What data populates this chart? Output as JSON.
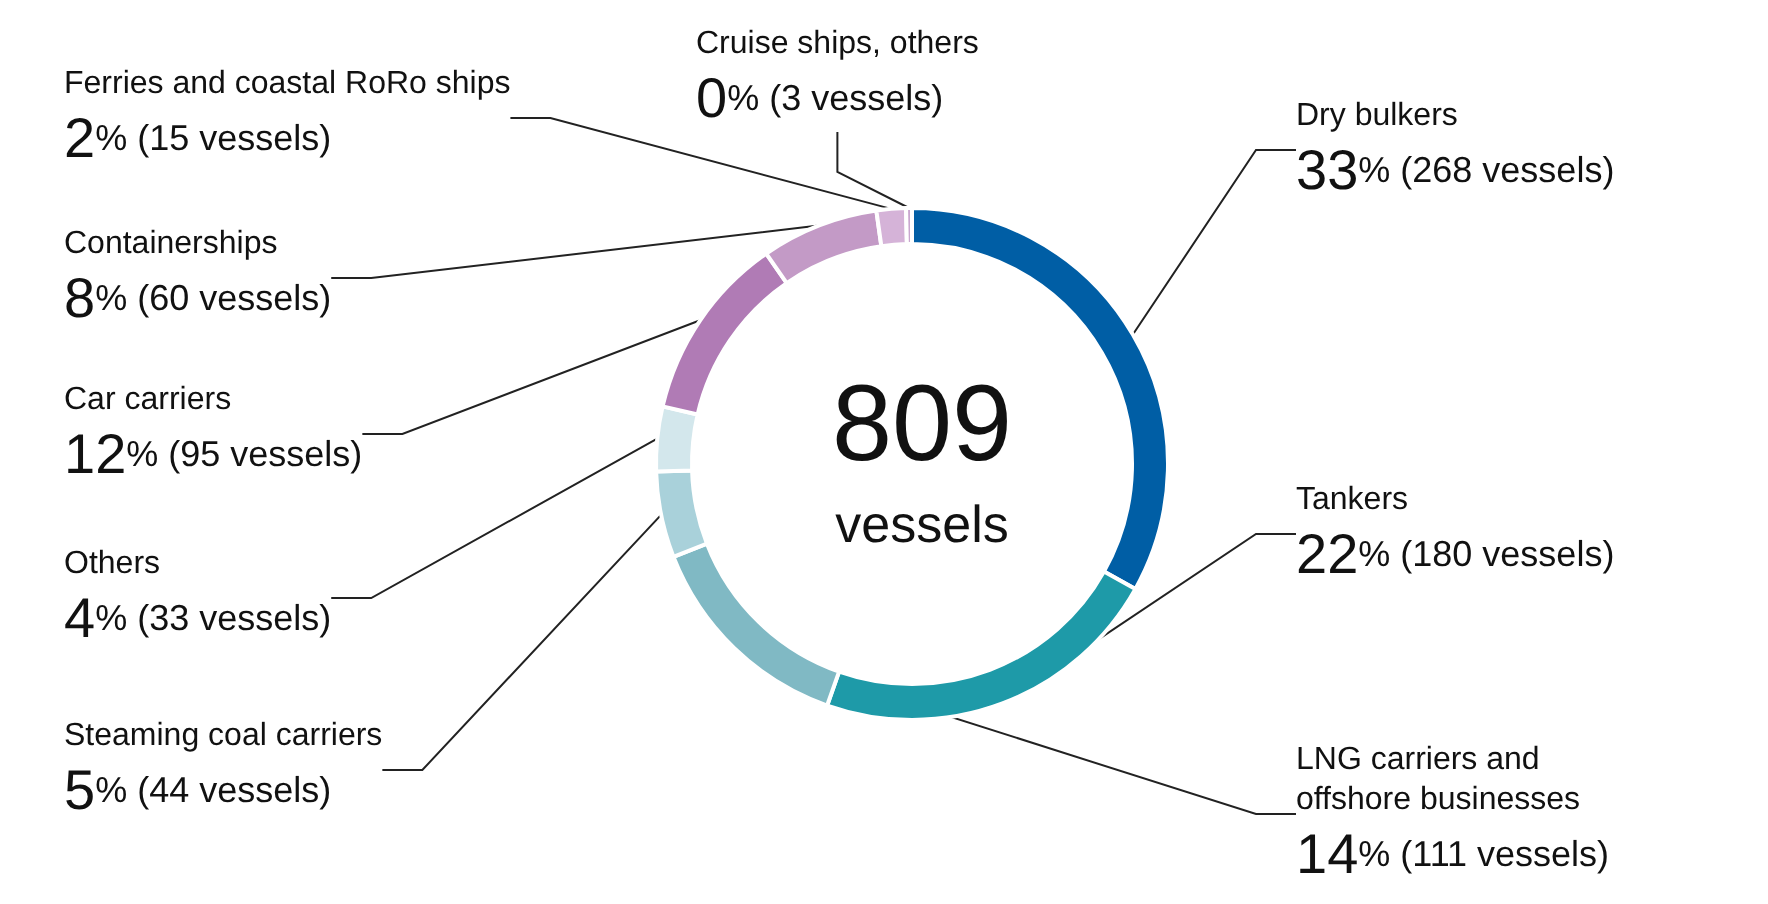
{
  "chart_data": {
    "type": "donut",
    "title": "809",
    "subtitle": "vessels",
    "categories": [
      "Dry bulkers",
      "Tankers",
      "LNG carriers and\noffshore businesses",
      "Steaming coal carriers",
      "Others",
      "Car carriers",
      "Containerships",
      "Ferries and coastal RoRo ships",
      "Cruise ships, others"
    ],
    "values": [
      268,
      180,
      111,
      44,
      33,
      95,
      60,
      15,
      3
    ],
    "value_labels": [
      "33% (268 vessels)",
      "22% (180 vessels)",
      "14% (111 vessels)",
      "5% (44 vessels)",
      "4% (33 vessels)",
      "12% (95 vessels)",
      "8% (60 vessels)",
      "2% (15 vessels)",
      "0% (3 vessels)"
    ],
    "colors": [
      "#005ea5",
      "#1e9aa8",
      "#80b9c4",
      "#a9d1da",
      "#d3e7ec",
      "#b07bb5",
      "#c39ac6",
      "#d5b3d8",
      "#c9a6cf"
    ],
    "legend": false
  }
}
